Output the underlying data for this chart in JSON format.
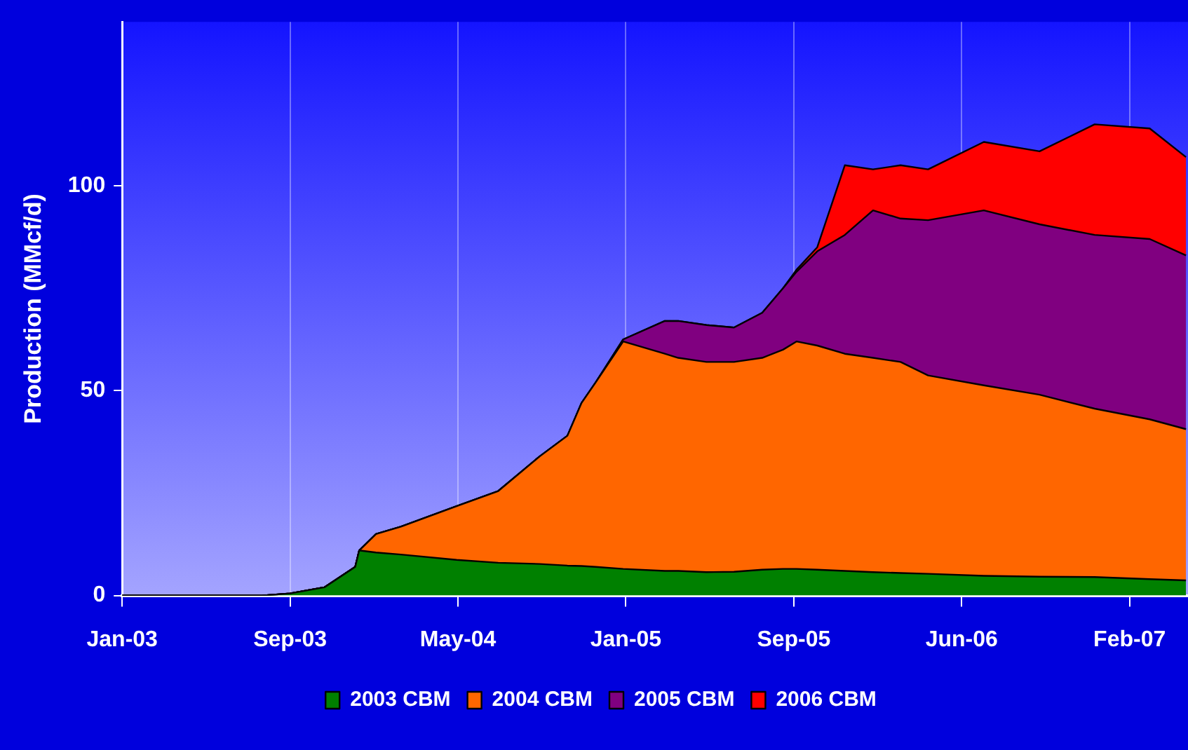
{
  "chart_data": {
    "type": "area",
    "stacked": true,
    "ylabel": "Production (MMcf/d)",
    "x": [
      "2003-01-01",
      "2003-06-08",
      "2003-07-28",
      "2003-09-08",
      "2003-10-29",
      "2003-12-14",
      "2003-12-20",
      "2004-01-14",
      "2004-02-20",
      "2004-05-13",
      "2004-07-14",
      "2004-09-14",
      "2004-10-25",
      "2004-11-15",
      "2004-12-06",
      "2005-01-16",
      "2005-03-19",
      "2005-04-08",
      "2005-05-20",
      "2005-06-30",
      "2005-08-11",
      "2005-09-11",
      "2005-10-01",
      "2005-11-01",
      "2005-12-12",
      "2006-01-23",
      "2006-03-05",
      "2006-04-15",
      "2006-07-07",
      "2006-09-28",
      "2006-12-19",
      "2007-03-11",
      "2007-05-04"
    ],
    "series": [
      {
        "name": "2003 CBM",
        "color": "#008000",
        "values": [
          0,
          0,
          0,
          0.5,
          2,
          7,
          11,
          10.5,
          10,
          8.7,
          8,
          7.7,
          7.3,
          7.2,
          7,
          6.5,
          6,
          6,
          5.7,
          5.8,
          6.3,
          6.5,
          6.5,
          6.3,
          6,
          5.7,
          5.5,
          5.3,
          4.8,
          4.6,
          4.5,
          4,
          3.7
        ]
      },
      {
        "name": "2004 CBM",
        "color": "#ff6600",
        "values": [
          0,
          0,
          0,
          0,
          0,
          0,
          0,
          4.5,
          6.8,
          13.1,
          17.5,
          26.3,
          31.7,
          39.8,
          45,
          55.5,
          53,
          52,
          51.3,
          51.2,
          51.7,
          53.5,
          55.5,
          54.7,
          53,
          52.3,
          51.5,
          48.4,
          46.5,
          44.4,
          41.1,
          39,
          36.9
        ]
      },
      {
        "name": "2005 CBM",
        "color": "#800080",
        "values": [
          0,
          0,
          0,
          0,
          0,
          0,
          0,
          0,
          0,
          0,
          0,
          0,
          0,
          0,
          0,
          0.5,
          8,
          9,
          9,
          8.4,
          11,
          15,
          17,
          23,
          29,
          36,
          35,
          37.9,
          42.7,
          41.6,
          42.4,
          44,
          42.4
        ]
      },
      {
        "name": "2006 CBM",
        "color": "#ff0000",
        "values": [
          0,
          0,
          0,
          0,
          0,
          0,
          0,
          0,
          0,
          0,
          0,
          0,
          0,
          0,
          0,
          0,
          0,
          0,
          0,
          0,
          0,
          0,
          0.5,
          1,
          17,
          10,
          13,
          12.4,
          16.7,
          17.8,
          27,
          27,
          24
        ]
      }
    ],
    "xlim": [
      "2003-01-01",
      "2007-05-07"
    ],
    "xticks": [
      {
        "value": "2003-01-01",
        "label": "Jan-03"
      },
      {
        "value": "2003-09-08",
        "label": "Sep-03"
      },
      {
        "value": "2004-05-15",
        "label": "May-04"
      },
      {
        "value": "2005-01-20",
        "label": "Jan-05"
      },
      {
        "value": "2005-09-27",
        "label": "Sep-05"
      },
      {
        "value": "2006-06-04",
        "label": "Jun-06"
      },
      {
        "value": "2007-02-09",
        "label": "Feb-07"
      }
    ],
    "ylim": [
      0,
      140
    ],
    "yticks": [
      0,
      50,
      100
    ],
    "grid": "x",
    "legend": "bottom"
  }
}
